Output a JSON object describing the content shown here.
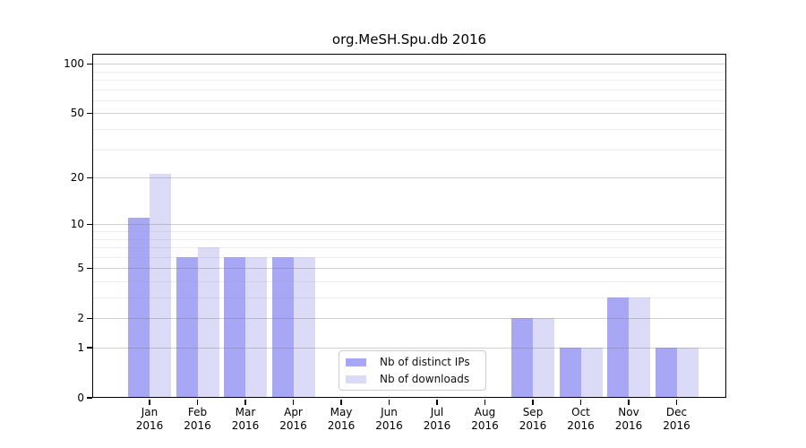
{
  "figure": {
    "background": "#ffffff"
  },
  "colors": {
    "distinct_ips": "#a7a7f5",
    "downloads": "#dbdbf8",
    "axis": "#000000",
    "grid_major": "#cfcfcf",
    "grid_minor": "#ececec",
    "legend_border": "#cccccc"
  },
  "chart_data": {
    "type": "bar",
    "title": "org.MeSH.Spu.db 2016",
    "categories": [
      "Jan 2016",
      "Feb 2016",
      "Mar 2016",
      "Apr 2016",
      "May 2016",
      "Jun 2016",
      "Jul 2016",
      "Aug 2016",
      "Sep 2016",
      "Oct 2016",
      "Nov 2016",
      "Dec 2016"
    ],
    "series": [
      {
        "name": "Nb of distinct IPs",
        "color": "#a7a7f5",
        "values": [
          11,
          6,
          6,
          6,
          0,
          0,
          0,
          0,
          2,
          1,
          3,
          1
        ]
      },
      {
        "name": "Nb of downloads",
        "color": "#dbdbf8",
        "values": [
          21,
          7,
          6,
          6,
          0,
          0,
          0,
          0,
          2,
          1,
          3,
          1
        ]
      }
    ],
    "xlabel": "",
    "ylabel": "",
    "scale": "log1p",
    "ylim": [
      0,
      115
    ],
    "yticks": [
      0,
      1,
      2,
      5,
      10,
      20,
      50,
      100
    ],
    "minor_gridlines": [
      3,
      4,
      6,
      7,
      8,
      9,
      30,
      40,
      60,
      70,
      80,
      90
    ],
    "grid": true,
    "legend_position": "lower center"
  }
}
